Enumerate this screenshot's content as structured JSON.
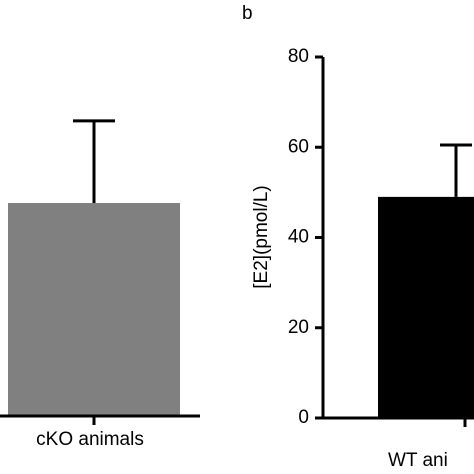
{
  "chart_data": [
    {
      "type": "bar",
      "categories": [
        "cKO animals"
      ],
      "values": [
        47.2
      ],
      "errors": [
        18.2
      ],
      "color": "#808080",
      "ylim": [
        0,
        80
      ]
    },
    {
      "type": "bar",
      "panel_label": "b",
      "y_label": "[E2](pmol/L)",
      "categories": [
        "WT ani"
      ],
      "values": [
        49
      ],
      "errors": [
        11.5
      ],
      "color": "#000000",
      "ylim": [
        0,
        80
      ],
      "yticks": [
        0,
        20,
        40,
        60,
        80
      ]
    }
  ]
}
